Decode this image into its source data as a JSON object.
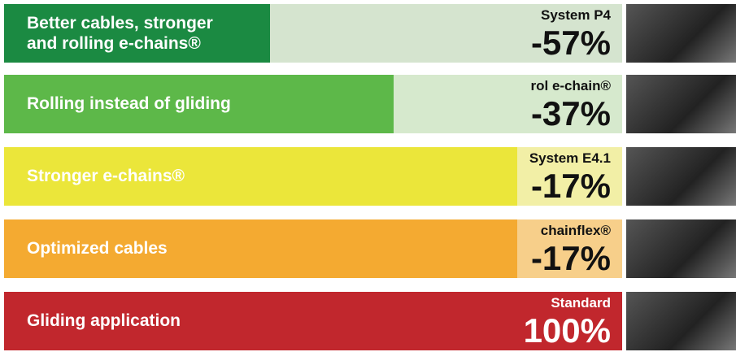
{
  "chart_data": {
    "type": "bar",
    "categories": [
      "Better cables, stronger\nand rolling e-chains®",
      "Rolling instead of gliding",
      "Stronger e-chains®",
      "Optimized cables",
      "Gliding application"
    ],
    "annotations": [
      "System P4",
      "rol e-chain®",
      "System E4.1",
      "chainflex®",
      "Standard"
    ],
    "values": [
      -57,
      -37,
      -17,
      -17,
      100
    ],
    "value_labels": [
      "-57%",
      "-37%",
      "-17%",
      "-17%",
      "100%"
    ],
    "colors": [
      "#1b8a42",
      "#5db849",
      "#ebe63a",
      "#f4aa31",
      "#c1272d"
    ],
    "background_colors": [
      "#d5e4cf",
      "#d6e9cd",
      "#f2efa6",
      "#f7cf8a",
      "#c1272d"
    ]
  }
}
